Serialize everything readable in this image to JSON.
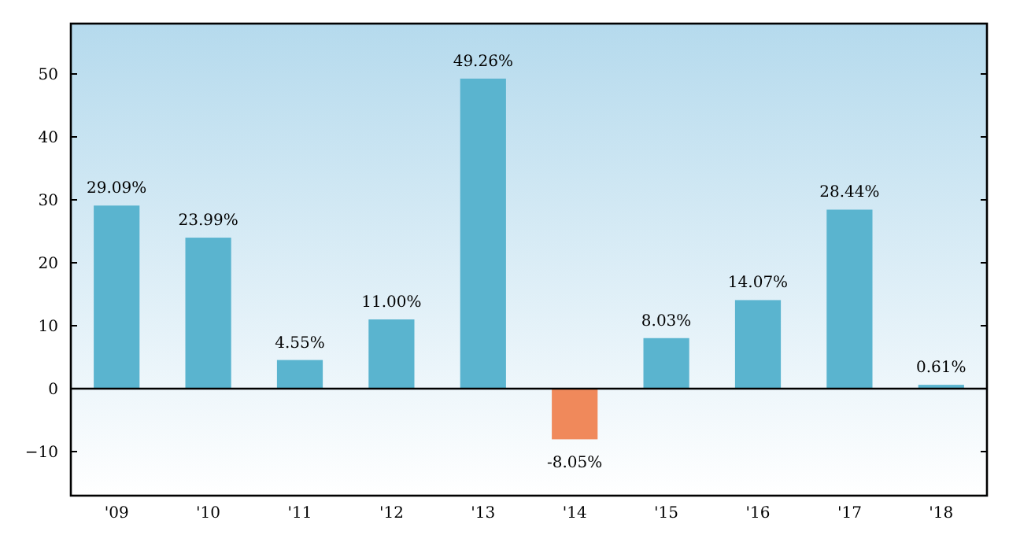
{
  "chart_data": {
    "type": "bar",
    "categories": [
      "'09",
      "'10",
      "'11",
      "'12",
      "'13",
      "'14",
      "'15",
      "'16",
      "'17",
      "'18"
    ],
    "values": [
      29.09,
      23.99,
      4.55,
      11.0,
      49.26,
      -8.05,
      8.03,
      14.07,
      28.44,
      0.61
    ],
    "value_labels": [
      "29.09%",
      "23.99%",
      "4.55%",
      "11.00%",
      "49.26%",
      "-8.05%",
      "8.03%",
      "14.07%",
      "28.44%",
      "0.61%"
    ],
    "colors": [
      "#5ab4cf",
      "#5ab4cf",
      "#5ab4cf",
      "#5ab4cf",
      "#5ab4cf",
      "#f0895b",
      "#5ab4cf",
      "#5ab4cf",
      "#5ab4cf",
      "#5ab4cf"
    ],
    "ylim": [
      -17,
      58
    ],
    "yticks": [
      -10,
      0,
      10,
      20,
      30,
      40,
      50
    ],
    "ref_lines": [
      {
        "axis": "y",
        "value": 0,
        "color": "#000000"
      }
    ],
    "grid": false
  }
}
